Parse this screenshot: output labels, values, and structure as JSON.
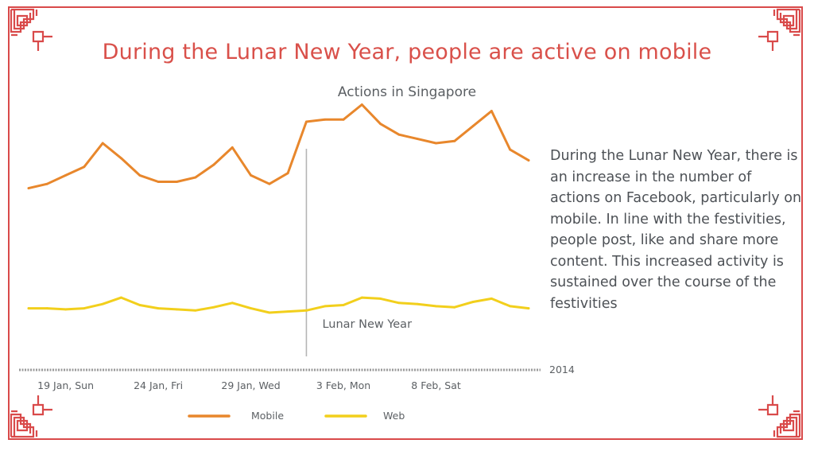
{
  "title": "During the Lunar New Year, people are active on mobile",
  "description": "During the Lunar New Year, there is an increase in the number of actions on Facebook, particularly on mobile. In line with the festivities, people post, like and share more content. This increased activity is sustained over the course of the festivities",
  "colors": {
    "frame": "#d94a4a",
    "title": "#d9504a",
    "mobile": "#e8872c",
    "web": "#f2cf1c",
    "axis": "#999999",
    "text": "#5b5f63"
  },
  "icons": {
    "corners": "chinese-lattice-corner-ornament"
  },
  "chart_data": {
    "type": "line",
    "title": "Actions in Singapore",
    "xlabel": "",
    "ylabel": "",
    "x": [
      "17 Jan",
      "18 Jan",
      "19 Jan",
      "20 Jan",
      "21 Jan",
      "22 Jan",
      "23 Jan",
      "24 Jan",
      "25 Jan",
      "26 Jan",
      "27 Jan",
      "28 Jan",
      "29 Jan",
      "30 Jan",
      "31 Jan",
      "1 Feb",
      "2 Feb",
      "3 Feb",
      "4 Feb",
      "5 Feb",
      "6 Feb",
      "7 Feb",
      "8 Feb",
      "9 Feb",
      "10 Feb",
      "11 Feb",
      "12 Feb",
      "13 Feb"
    ],
    "tick_labels": [
      {
        "x": "19 Jan",
        "label": "19 Jan, Sun"
      },
      {
        "x": "24 Jan",
        "label": "24 Jan, Fri"
      },
      {
        "x": "29 Jan",
        "label": "29 Jan, Wed"
      },
      {
        "x": "3 Feb",
        "label": "3 Feb, Mon"
      },
      {
        "x": "8 Feb",
        "label": "8 Feb, Sat"
      }
    ],
    "year_label": "2014",
    "series": [
      {
        "name": "Mobile",
        "color": "#e8872c",
        "values": [
          71,
          73,
          77,
          81,
          92,
          85,
          77,
          74,
          74,
          76,
          82,
          90,
          77,
          73,
          78,
          102,
          103,
          103,
          110,
          101,
          96,
          94,
          92,
          93,
          100,
          107,
          89,
          84
        ]
      },
      {
        "name": "Web",
        "color": "#f2cf1c",
        "values": [
          15,
          15,
          14.5,
          15,
          17,
          20,
          16.5,
          15,
          14.5,
          14,
          15.5,
          17.5,
          15,
          13,
          13.5,
          14,
          16,
          16.5,
          20,
          19.5,
          17.5,
          17,
          16,
          15.5,
          18,
          19.5,
          16,
          15
        ]
      }
    ],
    "ylim": [
      0,
      115
    ],
    "annotation": {
      "x": "1 Feb",
      "label": "Lunar New Year"
    },
    "grid": false,
    "legend_position": "bottom"
  }
}
